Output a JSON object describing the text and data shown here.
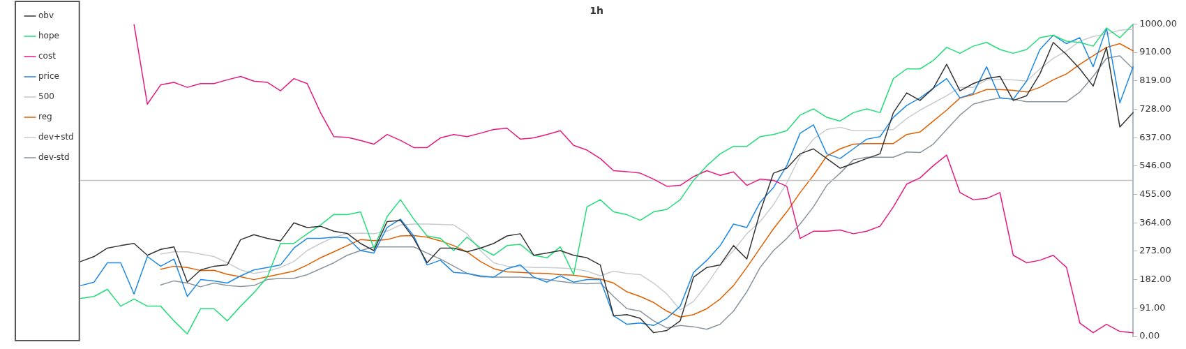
{
  "chart_data": {
    "type": "line",
    "title": "1h",
    "legend": "top left",
    "tick_labels": "y",
    "grid": false,
    "categories": [
      null,
      null,
      null,
      null,
      null,
      null,
      null,
      null,
      null,
      null,
      null,
      null,
      null,
      null,
      null,
      null,
      null,
      null,
      null,
      null,
      null,
      null,
      null,
      null,
      null,
      null,
      null,
      null,
      null,
      null,
      null,
      null,
      null,
      null,
      null,
      null,
      null,
      null,
      null,
      null,
      null,
      null,
      null,
      null,
      null,
      null,
      null,
      null,
      null,
      null,
      null,
      null,
      null,
      null,
      null,
      null,
      null,
      null,
      null,
      null,
      null,
      null,
      null,
      null,
      null,
      null,
      null,
      null,
      null,
      null,
      null,
      null,
      null,
      null,
      null,
      null,
      null,
      null,
      null,
      null
    ],
    "ylim": [
      0,
      1000
    ],
    "yticks": [
      {
        "value": 0,
        "label": "0.00"
      },
      {
        "value": 91,
        "label": "91.00"
      },
      {
        "value": 182,
        "label": "182.00"
      },
      {
        "value": 273,
        "label": "273.00"
      },
      {
        "value": 364,
        "label": "364.00"
      },
      {
        "value": 455,
        "label": "455.00"
      },
      {
        "value": 546,
        "label": "546.00"
      },
      {
        "value": 637,
        "label": "637.00"
      },
      {
        "value": 728,
        "label": "728.00"
      },
      {
        "value": 819,
        "label": "819.00"
      },
      {
        "value": 910,
        "label": "910.00"
      },
      {
        "value": 1000,
        "label": "1000.00"
      }
    ],
    "series": [
      {
        "name": "obv",
        "color": "#333333",
        "values": [
          240,
          256,
          283,
          291,
          298,
          260,
          279,
          287,
          174,
          213,
          225,
          229,
          310,
          326,
          314,
          306,
          364,
          349,
          353,
          337,
          330,
          298,
          275,
          368,
          372,
          314,
          236,
          283,
          283,
          271,
          283,
          298,
          322,
          329,
          260,
          267,
          275,
          260,
          252,
          229,
          66,
          70,
          58,
          12,
          19,
          50,
          190,
          221,
          229,
          291,
          248,
          399,
          523,
          539,
          585,
          601,
          570,
          539,
          554,
          570,
          585,
          717,
          780,
          756,
          795,
          872,
          787,
          810,
          826,
          833,
          756,
          771,
          841,
          942,
          903,
          857,
          802,
          926,
          671,
          717
        ]
      },
      {
        "name": "hope",
        "color": "#22dd77",
        "values": [
          122,
          128,
          151,
          97,
          120,
          97,
          97,
          50,
          8,
          89,
          89,
          50,
          97,
          140,
          190,
          298,
          298,
          329,
          357,
          391,
          390,
          399,
          283,
          384,
          438,
          376,
          322,
          314,
          275,
          318,
          283,
          260,
          291,
          295,
          260,
          252,
          287,
          198,
          415,
          438,
          399,
          390,
          372,
          399,
          407,
          438,
          500,
          547,
          585,
          609,
          609,
          640,
          647,
          659,
          709,
          729,
          702,
          690,
          717,
          729,
          717,
          826,
          857,
          857,
          884,
          926,
          907,
          930,
          942,
          919,
          907,
          919,
          957,
          965,
          946,
          942,
          930,
          988,
          957,
          1000
        ]
      },
      {
        "name": "cost",
        "color": "#e6197f",
        "values": [
          null,
          null,
          null,
          null,
          1000,
          744,
          806,
          814,
          798,
          810,
          810,
          822,
          833,
          818,
          814,
          787,
          826,
          810,
          717,
          640,
          638,
          628,
          616,
          647,
          628,
          605,
          605,
          636,
          647,
          640,
          651,
          663,
          667,
          632,
          636,
          647,
          659,
          612,
          597,
          570,
          531,
          528,
          523,
          504,
          481,
          484,
          512,
          531,
          516,
          527,
          484,
          504,
          500,
          481,
          314,
          337,
          337,
          341,
          329,
          337,
          353,
          415,
          488,
          508,
          547,
          581,
          461,
          438,
          442,
          461,
          260,
          236,
          244,
          260,
          221,
          43,
          12,
          39,
          16,
          12
        ]
      },
      {
        "name": "price",
        "color": "#1e88e5",
        "values": [
          163,
          174,
          236,
          236,
          136,
          256,
          225,
          248,
          128,
          182,
          178,
          171,
          194,
          213,
          221,
          229,
          283,
          314,
          314,
          318,
          316,
          275,
          267,
          349,
          376,
          322,
          229,
          244,
          205,
          202,
          194,
          190,
          217,
          229,
          190,
          174,
          194,
          174,
          182,
          182,
          66,
          39,
          43,
          35,
          58,
          97,
          205,
          244,
          291,
          360,
          349,
          430,
          477,
          547,
          651,
          678,
          585,
          570,
          601,
          632,
          640,
          702,
          740,
          764,
          795,
          826,
          764,
          779,
          864,
          764,
          760,
          818,
          919,
          965,
          938,
          957,
          864,
          988,
          748,
          864
        ]
      },
      {
        "name": "500",
        "color": "#c4c4c4",
        "values": [
          500,
          500,
          500,
          500,
          500,
          500,
          500,
          500,
          500,
          500,
          500,
          500,
          500,
          500,
          500,
          500,
          500,
          500,
          500,
          500,
          500,
          500,
          500,
          500,
          500,
          500,
          500,
          500,
          500,
          500,
          500,
          500,
          500,
          500,
          500,
          500,
          500,
          500,
          500,
          500,
          500,
          500,
          500,
          500,
          500,
          500,
          500,
          500,
          500,
          500,
          500,
          500,
          500,
          500,
          500,
          500,
          500,
          500,
          500,
          500,
          500,
          500,
          500,
          500,
          500,
          500,
          500,
          500,
          500,
          500,
          500,
          500,
          500,
          500,
          500,
          500,
          500,
          500,
          500,
          500
        ]
      },
      {
        "name": "reg",
        "color": "#e06000",
        "values": [
          null,
          null,
          null,
          null,
          null,
          null,
          215,
          225,
          221,
          211,
          212,
          199,
          191,
          182,
          191,
          200,
          209,
          229,
          252,
          271,
          291,
          310,
          307,
          310,
          322,
          323,
          318,
          306,
          291,
          271,
          240,
          217,
          207,
          205,
          203,
          202,
          198,
          196,
          190,
          184,
          171,
          143,
          128,
          109,
          81,
          62,
          70,
          89,
          120,
          163,
          221,
          283,
          345,
          399,
          461,
          516,
          578,
          601,
          616,
          618,
          618,
          618,
          647,
          655,
          690,
          725,
          764,
          775,
          791,
          791,
          788,
          783,
          798,
          822,
          841,
          872,
          899,
          926,
          938,
          915
        ]
      },
      {
        "name": "dev+std",
        "color": "#c8ccd0",
        "values": [
          null,
          null,
          null,
          null,
          null,
          null,
          264,
          271,
          271,
          264,
          256,
          236,
          213,
          202,
          209,
          221,
          240,
          275,
          298,
          318,
          329,
          331,
          329,
          337,
          357,
          360,
          360,
          359,
          357,
          329,
          275,
          236,
          225,
          223,
          221,
          221,
          219,
          217,
          209,
          194,
          209,
          202,
          198,
          171,
          136,
          85,
          112,
          167,
          229,
          275,
          329,
          368,
          422,
          492,
          578,
          632,
          663,
          670,
          659,
          659,
          659,
          663,
          698,
          725,
          748,
          771,
          798,
          798,
          822,
          824,
          822,
          818,
          857,
          891,
          915,
          946,
          961,
          969,
          981,
          984
        ]
      },
      {
        "name": "dev-std",
        "color": "#8a959e",
        "values": [
          null,
          null,
          null,
          null,
          null,
          null,
          165,
          178,
          171,
          159,
          171,
          163,
          160,
          163,
          182,
          186,
          186,
          198,
          217,
          236,
          260,
          275,
          287,
          287,
          287,
          287,
          267,
          248,
          225,
          202,
          191,
          190,
          190,
          190,
          188,
          182,
          176,
          171,
          169,
          171,
          128,
          89,
          81,
          50,
          27,
          35,
          31,
          23,
          39,
          81,
          143,
          221,
          275,
          314,
          360,
          415,
          484,
          523,
          566,
          574,
          574,
          574,
          591,
          589,
          616,
          663,
          709,
          744,
          756,
          764,
          760,
          752,
          752,
          752,
          752,
          783,
          833,
          891,
          899,
          857
        ]
      }
    ]
  }
}
